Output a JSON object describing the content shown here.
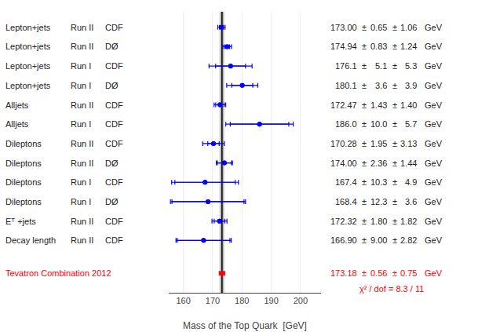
{
  "chart_data": {
    "type": "forest",
    "xlabel": "Mass of the Top Quark  [GeV]",
    "xlim": [
      155,
      207
    ],
    "xticks": [
      160,
      170,
      180,
      190,
      200
    ],
    "grid": true,
    "separator": "±",
    "unit": "GeV",
    "color": "blue",
    "measurements": [
      {
        "label": "Lepton+jets",
        "run": "Run II",
        "exp": "CDF",
        "value": 173.0,
        "stat": 0.65,
        "total": 1.2434227,
        "value_label": "173.00",
        "stat_label": "0.65",
        "syst_label": "1.06"
      },
      {
        "label": "Lepton+jets",
        "run": "Run II",
        "exp": "DØ",
        "value": 174.94,
        "stat": 0.83,
        "total": 1.4921461,
        "value_label": "174.94",
        "stat_label": "0.83",
        "syst_label": "1.24"
      },
      {
        "label": "Lepton+jets",
        "run": "Run I",
        "exp": "CDF",
        "value": 176.1,
        "stat": 5.1,
        "total": 7.3552702,
        "value_label": "176.1",
        "stat_label": "5.1",
        "syst_label": "5.3"
      },
      {
        "label": "Lepton+jets",
        "run": "Run I",
        "exp": "DØ",
        "value": 180.1,
        "stat": 3.6,
        "total": 5.3075418,
        "value_label": "180.1",
        "stat_label": "3.6",
        "syst_label": "3.9"
      },
      {
        "label": "Alljets",
        "run": "Run II",
        "exp": "CDF",
        "value": 172.47,
        "stat": 1.43,
        "total": 2.0012246,
        "value_label": "172.47",
        "stat_label": "1.43",
        "syst_label": "1.40"
      },
      {
        "label": "Alljets",
        "run": "Run I",
        "exp": "CDF",
        "value": 186.0,
        "stat": 10.0,
        "total": 11.51043,
        "value_label": "186.0",
        "stat_label": "10.0",
        "syst_label": "5.7"
      },
      {
        "label": "Dileptons",
        "run": "Run II",
        "exp": "CDF",
        "value": 170.28,
        "stat": 1.95,
        "total": 3.6877364,
        "value_label": "170.28",
        "stat_label": "1.95",
        "syst_label": "3.13"
      },
      {
        "label": "Dileptons",
        "run": "Run II",
        "exp": "DØ",
        "value": 174.0,
        "stat": 2.36,
        "total": 2.7646338,
        "value_label": "174.00",
        "stat_label": "2.36",
        "syst_label": "1.44"
      },
      {
        "label": "Dileptons",
        "run": "Run I",
        "exp": "CDF",
        "value": 167.4,
        "stat": 10.3,
        "total": 11.4061387,
        "value_label": "167.4",
        "stat_label": "10.3",
        "syst_label": "4.9"
      },
      {
        "label": "Dileptons",
        "run": "Run I",
        "exp": "DØ",
        "value": 168.4,
        "stat": 12.3,
        "total": 12.8160056,
        "value_label": "168.4",
        "stat_label": "12.3",
        "syst_label": "3.6"
      },
      {
        "label": "Eᵀ +jets",
        "run": "Run II",
        "exp": "CDF",
        "value": 172.32,
        "stat": 1.8,
        "total": 2.5597664,
        "value_label": "172.32",
        "stat_label": "1.80",
        "syst_label": "1.82"
      },
      {
        "label": "Decay length",
        "run": "Run II",
        "exp": "CDF",
        "value": 166.9,
        "stat": 9.0,
        "total": 9.431458,
        "value_label": "166.90",
        "stat_label": "9.00",
        "syst_label": "2.82"
      }
    ],
    "combination": {
      "label": "Tevatron Combination 2012",
      "value": 173.18,
      "stat": 0.56,
      "total": 0.9360021,
      "value_label": "173.18",
      "stat_label": "0.56",
      "syst_label": "0.75",
      "color": "red",
      "annotation": "χ² / dof = 8.3 / 11"
    }
  }
}
